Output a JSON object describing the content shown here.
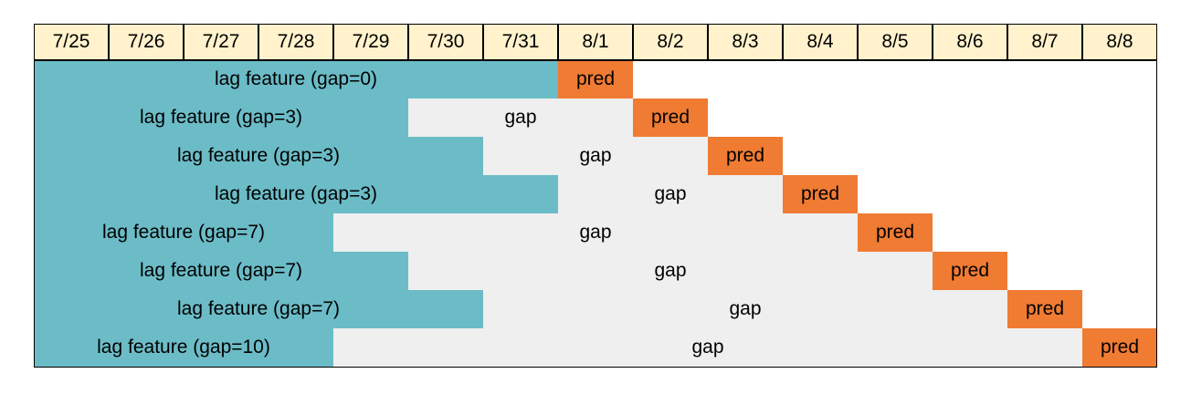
{
  "dates": [
    "7/25",
    "7/26",
    "7/27",
    "7/28",
    "7/29",
    "7/30",
    "7/31",
    "8/1",
    "8/2",
    "8/3",
    "8/4",
    "8/5",
    "8/6",
    "8/7",
    "8/8"
  ],
  "rows": [
    {
      "lag_label": "lag feature (gap=0)",
      "lag_days": 7,
      "gap_label": "",
      "gap_days": 0,
      "pred_label": "pred"
    },
    {
      "lag_label": "lag feature (gap=3)",
      "lag_days": 5,
      "gap_label": "gap",
      "gap_days": 3,
      "pred_label": "pred"
    },
    {
      "lag_label": "lag feature (gap=3)",
      "lag_days": 6,
      "gap_label": "gap",
      "gap_days": 3,
      "pred_label": "pred"
    },
    {
      "lag_label": "lag feature (gap=3)",
      "lag_days": 7,
      "gap_label": "gap",
      "gap_days": 3,
      "pred_label": "pred"
    },
    {
      "lag_label": "lag feature (gap=7)",
      "lag_days": 4,
      "gap_label": "gap",
      "gap_days": 7,
      "pred_label": "pred"
    },
    {
      "lag_label": "lag feature (gap=7)",
      "lag_days": 5,
      "gap_label": "gap",
      "gap_days": 7,
      "pred_label": "pred"
    },
    {
      "lag_label": "lag feature (gap=7)",
      "lag_days": 6,
      "gap_label": "gap",
      "gap_days": 7,
      "pred_label": "pred"
    },
    {
      "lag_label": "lag feature (gap=10)",
      "lag_days": 4,
      "gap_label": "gap",
      "gap_days": 10,
      "pred_label": "pred"
    }
  ],
  "colors": {
    "header_bg": "#fff2cc",
    "lag": "#6bbcc7",
    "gap": "#efefef",
    "pred": "#f07b33"
  }
}
